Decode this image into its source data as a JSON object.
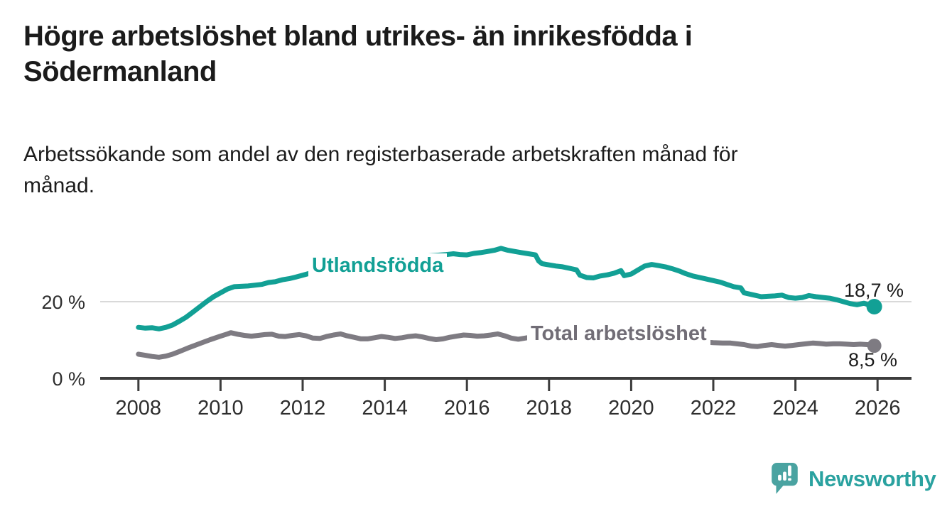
{
  "header": {
    "title_lines": [
      "Högre arbetslöshet bland utrikes- än inrikesfödda i",
      "Södermanland"
    ],
    "subtitle_lines": [
      "Arbetssökande som andel av den registerbaserade arbetskraften månad för",
      "månad."
    ]
  },
  "footer": {
    "brand": "Newsworthy"
  },
  "colors": {
    "accent_teal": "#12a095",
    "series_gray": "#7e7b82",
    "logo_teal": "#4aa3a1",
    "brand_text_teal": "#2aa2a0",
    "axis": "#3d3d3d",
    "gridline": "#d9d9d9",
    "text_dark": "#1b1b1b"
  },
  "chart_data": {
    "type": "line",
    "title": "Högre arbetslöshet bland utrikes- än inrikesfödda i Södermanland",
    "subtitle": "Arbetssökande som andel av den registerbaserade arbetskraften månad för månad.",
    "xlabel": "",
    "ylabel": "",
    "xlim": [
      2007.1,
      2026.85
    ],
    "ylim": [
      0,
      36.5
    ],
    "grid": "single horizontal gridline at 20 %",
    "legend_position": "inline labels on lines; end-value labels at right",
    "x_ticks": [
      {
        "value": 2008,
        "label": "2008"
      },
      {
        "value": 2010,
        "label": "2010"
      },
      {
        "value": 2012,
        "label": "2012"
      },
      {
        "value": 2014,
        "label": "2014"
      },
      {
        "value": 2016,
        "label": "2016"
      },
      {
        "value": 2018,
        "label": "2018"
      },
      {
        "value": 2020,
        "label": "2020"
      },
      {
        "value": 2022,
        "label": "2022"
      },
      {
        "value": 2024,
        "label": "2024"
      },
      {
        "value": 2026,
        "label": "2026"
      }
    ],
    "y_ticks": [
      {
        "value": 0,
        "label": "0 %",
        "grid": false
      },
      {
        "value": 20,
        "label": "20 %",
        "grid": true
      }
    ],
    "series": [
      {
        "name": "Utlandsfödda",
        "color": "#12a095",
        "end_label": "18,7 %",
        "end_value": 18.7,
        "points": [
          [
            2008.0,
            13.3
          ],
          [
            2008.17,
            13.1
          ],
          [
            2008.33,
            13.2
          ],
          [
            2008.5,
            12.9
          ],
          [
            2008.67,
            13.3
          ],
          [
            2008.83,
            13.9
          ],
          [
            2009.0,
            14.9
          ],
          [
            2009.17,
            16.0
          ],
          [
            2009.33,
            17.3
          ],
          [
            2009.5,
            18.7
          ],
          [
            2009.67,
            20.1
          ],
          [
            2009.83,
            21.3
          ],
          [
            2010.0,
            22.3
          ],
          [
            2010.17,
            23.3
          ],
          [
            2010.33,
            23.9
          ],
          [
            2010.5,
            24.0
          ],
          [
            2010.67,
            24.1
          ],
          [
            2010.83,
            24.3
          ],
          [
            2011.0,
            24.5
          ],
          [
            2011.17,
            25.0
          ],
          [
            2011.33,
            25.2
          ],
          [
            2011.5,
            25.7
          ],
          [
            2011.67,
            26.0
          ],
          [
            2011.83,
            26.4
          ],
          [
            2012.0,
            26.9
          ],
          [
            2012.17,
            27.4
          ],
          [
            2012.33,
            27.2
          ],
          [
            2012.5,
            27.4
          ],
          [
            2012.75,
            27.9
          ],
          [
            2013.0,
            28.4
          ],
          [
            2013.25,
            28.9
          ],
          [
            2013.5,
            29.4
          ],
          [
            2013.75,
            29.9
          ],
          [
            2014.0,
            30.3
          ],
          [
            2014.25,
            30.8
          ],
          [
            2014.5,
            31.2
          ],
          [
            2014.75,
            31.6
          ],
          [
            2015.0,
            31.9
          ],
          [
            2015.25,
            32.1
          ],
          [
            2015.5,
            32.3
          ],
          [
            2015.67,
            32.5
          ],
          [
            2015.83,
            32.3
          ],
          [
            2016.0,
            32.2
          ],
          [
            2016.17,
            32.6
          ],
          [
            2016.33,
            32.8
          ],
          [
            2016.5,
            33.1
          ],
          [
            2016.67,
            33.4
          ],
          [
            2016.83,
            33.9
          ],
          [
            2017.0,
            33.4
          ],
          [
            2017.17,
            33.1
          ],
          [
            2017.33,
            32.8
          ],
          [
            2017.5,
            32.5
          ],
          [
            2017.67,
            32.2
          ],
          [
            2017.75,
            30.6
          ],
          [
            2017.83,
            29.9
          ],
          [
            2018.0,
            29.6
          ],
          [
            2018.17,
            29.3
          ],
          [
            2018.33,
            29.1
          ],
          [
            2018.5,
            28.7
          ],
          [
            2018.67,
            28.3
          ],
          [
            2018.75,
            26.9
          ],
          [
            2018.92,
            26.3
          ],
          [
            2019.08,
            26.2
          ],
          [
            2019.25,
            26.7
          ],
          [
            2019.42,
            27.0
          ],
          [
            2019.58,
            27.4
          ],
          [
            2019.75,
            28.1
          ],
          [
            2019.83,
            26.8
          ],
          [
            2020.0,
            27.2
          ],
          [
            2020.17,
            28.3
          ],
          [
            2020.33,
            29.3
          ],
          [
            2020.5,
            29.7
          ],
          [
            2020.67,
            29.4
          ],
          [
            2020.83,
            29.1
          ],
          [
            2021.0,
            28.6
          ],
          [
            2021.17,
            28.0
          ],
          [
            2021.33,
            27.3
          ],
          [
            2021.5,
            26.7
          ],
          [
            2021.67,
            26.3
          ],
          [
            2021.83,
            25.9
          ],
          [
            2022.0,
            25.5
          ],
          [
            2022.17,
            25.1
          ],
          [
            2022.33,
            24.5
          ],
          [
            2022.5,
            23.9
          ],
          [
            2022.67,
            23.6
          ],
          [
            2022.75,
            22.3
          ],
          [
            2023.0,
            21.7
          ],
          [
            2023.17,
            21.3
          ],
          [
            2023.33,
            21.4
          ],
          [
            2023.5,
            21.5
          ],
          [
            2023.67,
            21.7
          ],
          [
            2023.83,
            21.1
          ],
          [
            2024.0,
            20.9
          ],
          [
            2024.17,
            21.1
          ],
          [
            2024.33,
            21.6
          ],
          [
            2024.5,
            21.3
          ],
          [
            2024.67,
            21.1
          ],
          [
            2024.83,
            20.9
          ],
          [
            2025.0,
            20.5
          ],
          [
            2025.17,
            20.0
          ],
          [
            2025.33,
            19.5
          ],
          [
            2025.5,
            19.2
          ],
          [
            2025.67,
            19.6
          ],
          [
            2025.83,
            19.0
          ],
          [
            2025.92,
            18.7
          ]
        ]
      },
      {
        "name": "Total arbetslöshet",
        "color": "#7e7b82",
        "end_label": "8,5 %",
        "end_value": 8.5,
        "points": [
          [
            2008.0,
            6.3
          ],
          [
            2008.17,
            6.0
          ],
          [
            2008.33,
            5.7
          ],
          [
            2008.5,
            5.5
          ],
          [
            2008.67,
            5.8
          ],
          [
            2008.83,
            6.3
          ],
          [
            2009.0,
            7.0
          ],
          [
            2009.25,
            8.1
          ],
          [
            2009.5,
            9.1
          ],
          [
            2009.75,
            10.1
          ],
          [
            2010.0,
            11.0
          ],
          [
            2010.17,
            11.6
          ],
          [
            2010.25,
            11.9
          ],
          [
            2010.42,
            11.5
          ],
          [
            2010.58,
            11.2
          ],
          [
            2010.75,
            11.0
          ],
          [
            2010.92,
            11.2
          ],
          [
            2011.08,
            11.4
          ],
          [
            2011.25,
            11.5
          ],
          [
            2011.42,
            11.0
          ],
          [
            2011.58,
            10.9
          ],
          [
            2011.75,
            11.2
          ],
          [
            2011.92,
            11.4
          ],
          [
            2012.08,
            11.1
          ],
          [
            2012.25,
            10.5
          ],
          [
            2012.42,
            10.4
          ],
          [
            2012.58,
            10.9
          ],
          [
            2012.75,
            11.3
          ],
          [
            2012.92,
            11.6
          ],
          [
            2013.08,
            11.1
          ],
          [
            2013.25,
            10.7
          ],
          [
            2013.42,
            10.3
          ],
          [
            2013.58,
            10.3
          ],
          [
            2013.75,
            10.6
          ],
          [
            2013.92,
            10.9
          ],
          [
            2014.08,
            10.7
          ],
          [
            2014.25,
            10.4
          ],
          [
            2014.42,
            10.6
          ],
          [
            2014.58,
            10.9
          ],
          [
            2014.75,
            11.1
          ],
          [
            2014.92,
            10.8
          ],
          [
            2015.08,
            10.4
          ],
          [
            2015.25,
            10.1
          ],
          [
            2015.42,
            10.3
          ],
          [
            2015.58,
            10.7
          ],
          [
            2015.75,
            11.0
          ],
          [
            2015.92,
            11.3
          ],
          [
            2016.08,
            11.2
          ],
          [
            2016.25,
            11.0
          ],
          [
            2016.42,
            11.1
          ],
          [
            2016.58,
            11.3
          ],
          [
            2016.75,
            11.6
          ],
          [
            2016.92,
            11.1
          ],
          [
            2017.08,
            10.5
          ],
          [
            2017.25,
            10.2
          ],
          [
            2017.42,
            10.5
          ],
          [
            2017.58,
            10.8
          ],
          [
            2017.75,
            10.9
          ],
          [
            2018.0,
            10.7
          ],
          [
            2018.25,
            10.4
          ],
          [
            2018.5,
            10.2
          ],
          [
            2018.75,
            10.0
          ],
          [
            2019.0,
            9.9
          ],
          [
            2019.25,
            10.0
          ],
          [
            2019.5,
            10.1
          ],
          [
            2019.75,
            9.9
          ],
          [
            2020.0,
            10.1
          ],
          [
            2020.25,
            10.7
          ],
          [
            2020.5,
            11.0
          ],
          [
            2020.75,
            10.8
          ],
          [
            2021.0,
            10.4
          ],
          [
            2021.25,
            10.1
          ],
          [
            2021.5,
            9.8
          ],
          [
            2021.75,
            9.5
          ],
          [
            2022.0,
            9.3
          ],
          [
            2022.25,
            9.2
          ],
          [
            2022.42,
            9.2
          ],
          [
            2022.58,
            9.0
          ],
          [
            2022.75,
            8.8
          ],
          [
            2022.92,
            8.4
          ],
          [
            2023.08,
            8.3
          ],
          [
            2023.25,
            8.6
          ],
          [
            2023.42,
            8.8
          ],
          [
            2023.58,
            8.6
          ],
          [
            2023.75,
            8.4
          ],
          [
            2023.92,
            8.6
          ],
          [
            2024.08,
            8.8
          ],
          [
            2024.25,
            9.0
          ],
          [
            2024.42,
            9.2
          ],
          [
            2024.58,
            9.1
          ],
          [
            2024.75,
            8.9
          ],
          [
            2024.92,
            9.0
          ],
          [
            2025.08,
            9.0
          ],
          [
            2025.25,
            8.9
          ],
          [
            2025.42,
            8.8
          ],
          [
            2025.58,
            8.9
          ],
          [
            2025.75,
            8.8
          ],
          [
            2025.92,
            8.5
          ]
        ]
      }
    ]
  }
}
